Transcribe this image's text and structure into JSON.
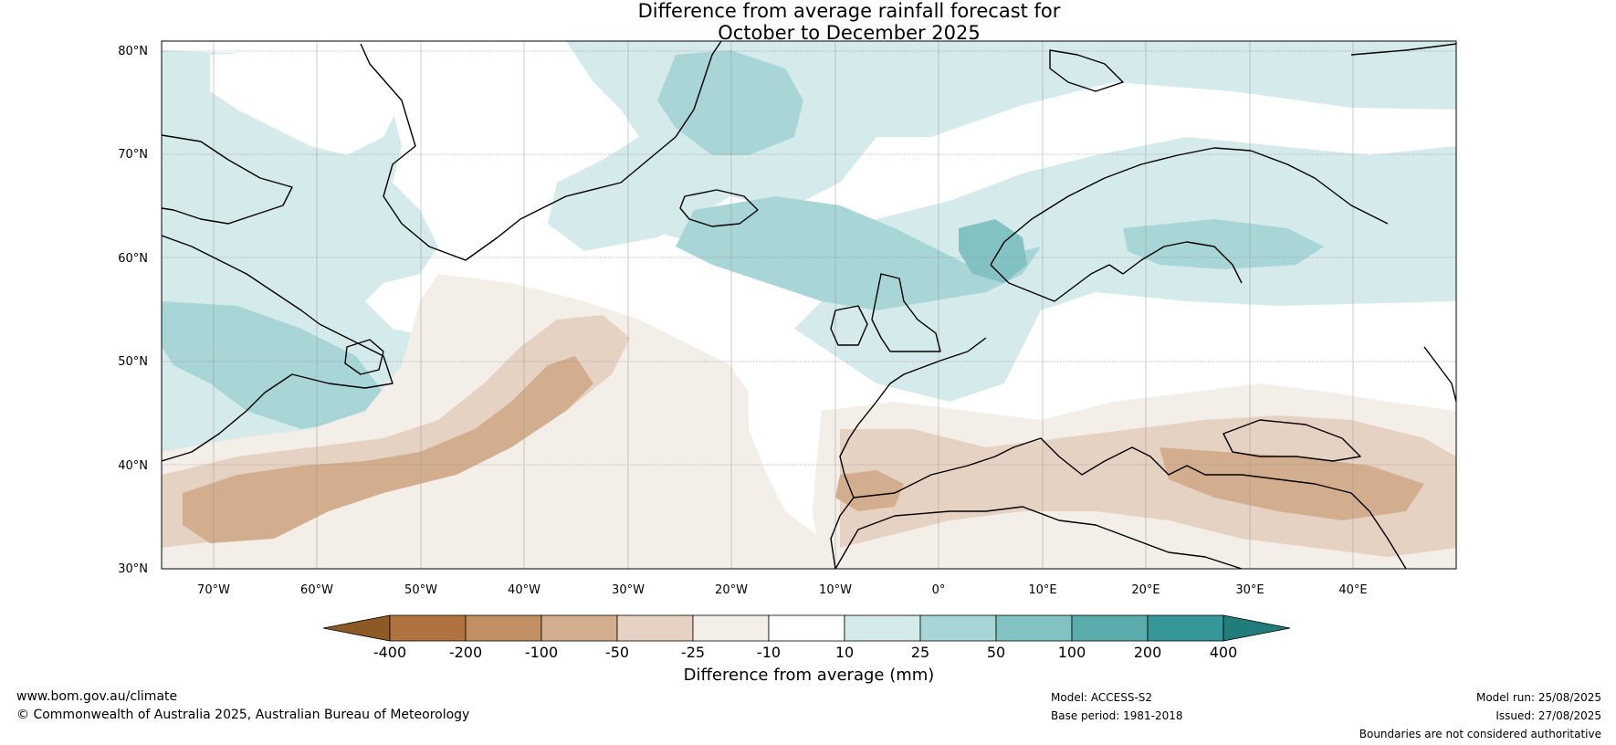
{
  "title_lines": [
    "Difference from average rainfall forecast for",
    "October to December 2025"
  ],
  "map": {
    "lat_labels": [
      "80°N",
      "70°N",
      "60°N",
      "50°N",
      "40°N",
      "30°N"
    ],
    "lon_labels": [
      "70°W",
      "60°W",
      "50°W",
      "40°W",
      "30°W",
      "20°W",
      "10°W",
      "0°",
      "10°E",
      "20°E",
      "30°E",
      "40°E"
    ],
    "extent": {
      "lon_min": -75,
      "lon_max": 50,
      "lat_min": 30,
      "lat_max": 81
    }
  },
  "colorbar": {
    "title": "Difference from average (mm)",
    "tick_labels": [
      "-400",
      "-200",
      "-100",
      "-50",
      "-25",
      "-10",
      "10",
      "25",
      "50",
      "100",
      "200",
      "400"
    ],
    "colors": [
      "#8c5a25",
      "#b07340",
      "#c28f64",
      "#d3ae8e",
      "#e6d2c2",
      "#f3eee8",
      "#ffffff",
      "#d5eaea",
      "#a8d5d6",
      "#82c2c2",
      "#5aacac",
      "#359797",
      "#237c7c"
    ]
  },
  "footer": {
    "left_line1": "www.bom.gov.au/climate",
    "left_line2": "© Commonwealth of Australia 2025, Australian Bureau of Meteorology",
    "model": "Model: ACCESS-S2",
    "base_period": "Base period: 1981-2018",
    "model_run": "Model run: 25/08/2025",
    "issued": "Issued: 27/08/2025",
    "disclaimer": "Boundaries are not considered authoritative"
  }
}
